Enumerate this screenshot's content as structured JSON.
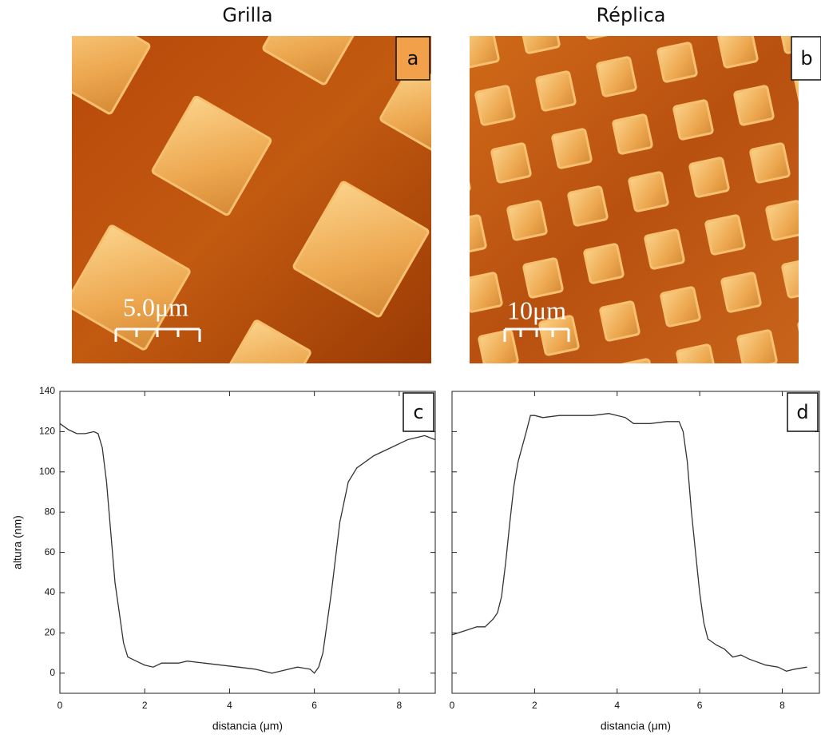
{
  "images": [
    {
      "title": "Grilla",
      "label": "a",
      "scale_bar": "5.0μm"
    },
    {
      "title": "Réplica",
      "label": "b",
      "scale_bar": "10μm"
    }
  ],
  "chart_data": [
    {
      "type": "line",
      "label": "c",
      "color": "#333333",
      "xlabel": "distancia (μm)",
      "ylabel": "altura (nm)",
      "xlim": [
        0,
        8.85
      ],
      "xticks": [
        0,
        2,
        4,
        6,
        8
      ],
      "ylim": [
        -10,
        140
      ],
      "yticks": [
        0,
        20,
        40,
        60,
        80,
        100,
        120,
        140
      ],
      "show_ytick_labels": true,
      "x": [
        0,
        0.2,
        0.4,
        0.6,
        0.8,
        0.9,
        1.0,
        1.1,
        1.2,
        1.3,
        1.4,
        1.5,
        1.6,
        1.8,
        2.0,
        2.2,
        2.4,
        2.6,
        2.8,
        3.0,
        3.4,
        3.8,
        4.2,
        4.6,
        5.0,
        5.2,
        5.6,
        5.9,
        6.0,
        6.1,
        6.2,
        6.4,
        6.6,
        6.8,
        7.0,
        7.4,
        7.8,
        8.2,
        8.6,
        8.85
      ],
      "values": [
        124,
        121,
        119,
        119,
        120,
        119,
        112,
        95,
        70,
        45,
        30,
        15,
        8,
        6,
        4,
        3,
        5,
        5,
        5,
        6,
        5,
        4,
        3,
        2,
        0,
        1,
        3,
        2,
        0,
        3,
        10,
        40,
        75,
        95,
        102,
        108,
        112,
        116,
        118,
        116
      ]
    },
    {
      "type": "line",
      "label": "d",
      "color": "#333333",
      "xlabel": "distancia (μm)",
      "xlim": [
        0,
        8.9
      ],
      "xticks": [
        0,
        2,
        4,
        6,
        8
      ],
      "ylim": [
        -10,
        140
      ],
      "yticks": [
        0,
        20,
        40,
        60,
        80,
        100,
        120,
        140
      ],
      "show_ytick_labels": false,
      "x": [
        0,
        0.3,
        0.6,
        0.8,
        1.0,
        1.1,
        1.2,
        1.3,
        1.4,
        1.5,
        1.6,
        1.8,
        1.9,
        2.0,
        2.2,
        2.6,
        3.0,
        3.4,
        3.8,
        4.2,
        4.4,
        4.8,
        5.2,
        5.5,
        5.6,
        5.7,
        5.8,
        5.9,
        6.0,
        6.1,
        6.2,
        6.4,
        6.6,
        6.8,
        7.0,
        7.2,
        7.6,
        7.9,
        8.1,
        8.3,
        8.6
      ],
      "values": [
        19,
        21,
        23,
        23,
        27,
        30,
        38,
        55,
        75,
        93,
        105,
        120,
        128,
        128,
        127,
        128,
        128,
        128,
        129,
        127,
        124,
        124,
        125,
        125,
        120,
        105,
        80,
        60,
        40,
        25,
        17,
        14,
        12,
        8,
        9,
        7,
        4,
        3,
        1,
        2,
        3
      ]
    }
  ]
}
